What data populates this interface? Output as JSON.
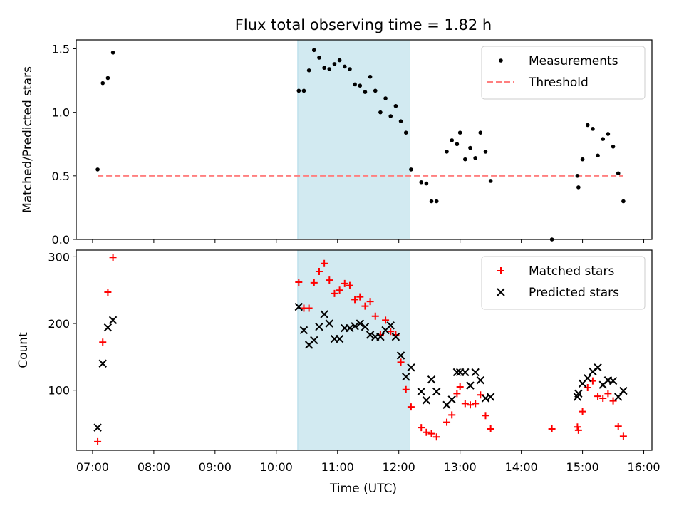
{
  "title": "Flux total observing time = 1.82 h",
  "xlabel": "Time (UTC)",
  "x_ticks": [
    "07:00",
    "08:00",
    "09:00",
    "10:00",
    "11:00",
    "12:00",
    "13:00",
    "14:00",
    "15:00",
    "16:00"
  ],
  "colors": {
    "band": "#add8e6",
    "threshold": "#ff7f7f",
    "matched": "#ff0000",
    "predicted": "#000000",
    "measure": "#000000"
  },
  "chart_data": [
    {
      "type": "scatter",
      "ylabel": "Matched/Predicted stars",
      "xlim": [
        "06:44",
        "16:08"
      ],
      "ylim": [
        0,
        1.57
      ],
      "y_ticks": [
        "0.0",
        "0.5",
        "1.0",
        "1.5"
      ],
      "y_tick_values": [
        0,
        0.5,
        1.0,
        1.5
      ],
      "legend": {
        "placement": "top-right",
        "entries": [
          "Measurements",
          "Threshold"
        ]
      },
      "shaded_span": [
        "10:21",
        "12:11"
      ],
      "threshold": {
        "name": "Threshold",
        "value": 0.5,
        "x_range": [
          "07:05",
          "15:40"
        ]
      },
      "series": [
        {
          "name": "Measurements",
          "x": [
            "07:05",
            "07:10",
            "07:15",
            "07:20",
            "10:22",
            "10:27",
            "10:32",
            "10:37",
            "10:42",
            "10:47",
            "10:52",
            "10:57",
            "11:02",
            "11:07",
            "11:12",
            "11:17",
            "11:22",
            "11:27",
            "11:32",
            "11:37",
            "11:42",
            "11:47",
            "11:52",
            "11:57",
            "12:02",
            "12:07",
            "12:12",
            "12:22",
            "12:27",
            "12:32",
            "12:37",
            "12:47",
            "12:52",
            "12:57",
            "13:00",
            "13:05",
            "13:10",
            "13:15",
            "13:20",
            "13:25",
            "13:30",
            "14:30",
            "14:55",
            "14:56",
            "15:00",
            "15:05",
            "15:10",
            "15:15",
            "15:20",
            "15:25",
            "15:30",
            "15:35",
            "15:40"
          ],
          "y": [
            0.55,
            1.23,
            1.27,
            1.47,
            1.17,
            1.17,
            1.33,
            1.49,
            1.43,
            1.35,
            1.34,
            1.38,
            1.41,
            1.36,
            1.34,
            1.22,
            1.21,
            1.16,
            1.28,
            1.17,
            1.0,
            1.11,
            0.97,
            1.05,
            0.93,
            0.84,
            0.55,
            0.45,
            0.44,
            0.3,
            0.3,
            0.69,
            0.78,
            0.75,
            0.84,
            0.63,
            0.72,
            0.64,
            0.84,
            0.69,
            0.46,
            0.0,
            0.5,
            0.41,
            0.63,
            0.9,
            0.87,
            0.66,
            0.79,
            0.83,
            0.73,
            0.52,
            0.3
          ]
        }
      ]
    },
    {
      "type": "scatter",
      "ylabel": "Count",
      "xlim": [
        "06:44",
        "16:08"
      ],
      "ylim": [
        10,
        310
      ],
      "y_ticks": [
        "100",
        "200",
        "300"
      ],
      "y_tick_values": [
        100,
        200,
        300
      ],
      "legend": {
        "placement": "top-right",
        "entries": [
          "Matched stars",
          "Predicted stars"
        ]
      },
      "shaded_span": [
        "10:21",
        "12:11"
      ],
      "series": [
        {
          "name": "Matched stars",
          "marker": "plus",
          "x": [
            "07:05",
            "07:10",
            "07:15",
            "07:20",
            "10:22",
            "10:27",
            "10:32",
            "10:37",
            "10:42",
            "10:47",
            "10:52",
            "10:57",
            "11:02",
            "11:07",
            "11:12",
            "11:17",
            "11:22",
            "11:27",
            "11:32",
            "11:37",
            "11:42",
            "11:47",
            "11:52",
            "11:57",
            "12:02",
            "12:07",
            "12:12",
            "12:22",
            "12:27",
            "12:32",
            "12:37",
            "12:47",
            "12:52",
            "12:57",
            "13:00",
            "13:05",
            "13:10",
            "13:15",
            "13:20",
            "13:25",
            "13:30",
            "14:30",
            "14:55",
            "14:56",
            "15:00",
            "15:05",
            "15:10",
            "15:15",
            "15:20",
            "15:25",
            "15:30",
            "15:35",
            "15:40"
          ],
          "y": [
            23,
            172,
            247,
            299,
            262,
            223,
            223,
            261,
            278,
            290,
            265,
            245,
            250,
            260,
            257,
            236,
            240,
            226,
            233,
            211,
            183,
            205,
            188,
            183,
            142,
            101,
            75,
            44,
            37,
            35,
            30,
            52,
            63,
            95,
            105,
            80,
            78,
            80,
            93,
            62,
            42,
            42,
            45,
            40,
            68,
            104,
            114,
            91,
            88,
            95,
            84,
            46,
            31
          ]
        },
        {
          "name": "Predicted stars",
          "marker": "x",
          "x": [
            "07:05",
            "07:10",
            "07:15",
            "07:20",
            "10:22",
            "10:27",
            "10:32",
            "10:37",
            "10:42",
            "10:47",
            "10:52",
            "10:57",
            "11:02",
            "11:07",
            "11:12",
            "11:17",
            "11:22",
            "11:27",
            "11:32",
            "11:37",
            "11:42",
            "11:47",
            "11:52",
            "11:57",
            "12:02",
            "12:07",
            "12:12",
            "12:22",
            "12:27",
            "12:32",
            "12:37",
            "12:47",
            "12:52",
            "12:57",
            "13:00",
            "13:05",
            "13:10",
            "13:15",
            "13:20",
            "13:25",
            "13:30",
            "14:55",
            "14:56",
            "15:00",
            "15:05",
            "15:10",
            "15:15",
            "15:20",
            "15:25",
            "15:30",
            "15:35",
            "15:40"
          ],
          "y": [
            44,
            140,
            194,
            205,
            225,
            190,
            168,
            175,
            195,
            214,
            200,
            177,
            177,
            193,
            193,
            196,
            200,
            195,
            183,
            180,
            180,
            190,
            197,
            180,
            152,
            120,
            134,
            98,
            85,
            116,
            98,
            78,
            86,
            127,
            127,
            127,
            107,
            127,
            115,
            88,
            90,
            90,
            95,
            110,
            118,
            128,
            134,
            108,
            115,
            114,
            90,
            99
          ]
        }
      ]
    }
  ]
}
